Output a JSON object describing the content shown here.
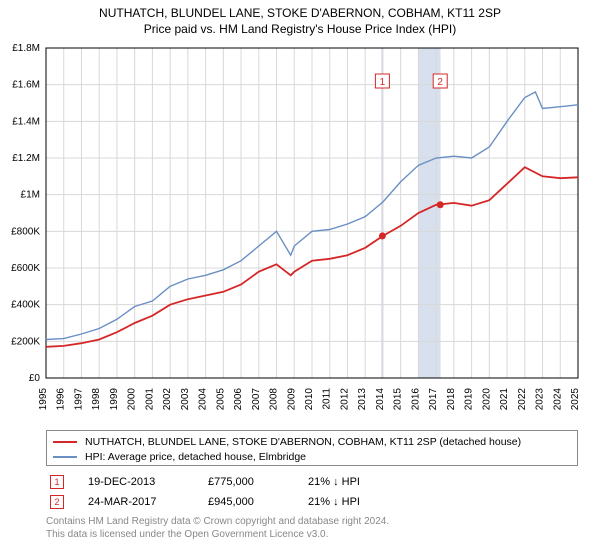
{
  "title_line1": "NUTHATCH, BLUNDEL LANE, STOKE D'ABERNON, COBHAM, KT11 2SP",
  "title_line2": "Price paid vs. HM Land Registry's House Price Index (HPI)",
  "chart": {
    "type": "line",
    "xlim": [
      1995,
      2025
    ],
    "ylim": [
      0,
      1800000
    ],
    "ytick_step": 200000,
    "ytick_labels": [
      "£0",
      "£200K",
      "£400K",
      "£600K",
      "£800K",
      "£1M",
      "£1.2M",
      "£1.4M",
      "£1.6M",
      "£1.8M"
    ],
    "xticks": [
      1995,
      1996,
      1997,
      1998,
      1999,
      2000,
      2001,
      2002,
      2003,
      2004,
      2005,
      2006,
      2007,
      2008,
      2009,
      2010,
      2011,
      2012,
      2013,
      2014,
      2015,
      2016,
      2017,
      2018,
      2019,
      2020,
      2021,
      2022,
      2023,
      2024,
      2025
    ],
    "grid_color": "#d8d8d8",
    "background_color": "#ffffff",
    "axis_color": "#000000",
    "series": {
      "subject": {
        "color": "#d62728",
        "width": 1.8,
        "x": [
          1995,
          1996,
          1997,
          1998,
          1999,
          2000,
          2001,
          2002,
          2003,
          2004,
          2005,
          2006,
          2007,
          2008,
          2008.8,
          2009,
          2010,
          2011,
          2012,
          2013,
          2014,
          2015,
          2016,
          2017,
          2018,
          2019,
          2020,
          2021,
          2022,
          2023,
          2024,
          2025
        ],
        "y": [
          170000,
          175000,
          190000,
          210000,
          250000,
          300000,
          340000,
          400000,
          430000,
          450000,
          470000,
          510000,
          580000,
          620000,
          560000,
          580000,
          640000,
          650000,
          670000,
          710000,
          775000,
          830000,
          900000,
          945000,
          955000,
          940000,
          970000,
          1060000,
          1150000,
          1100000,
          1090000,
          1095000
        ]
      },
      "hpi": {
        "color": "#6a8fc4",
        "width": 1.4,
        "x": [
          1995,
          1996,
          1997,
          1998,
          1999,
          2000,
          2001,
          2002,
          2003,
          2004,
          2005,
          2006,
          2007,
          2008,
          2008.8,
          2009,
          2010,
          2011,
          2012,
          2013,
          2014,
          2015,
          2016,
          2017,
          2018,
          2019,
          2020,
          2021,
          2022,
          2022.6,
          2023,
          2024,
          2025
        ],
        "y": [
          210000,
          215000,
          240000,
          270000,
          320000,
          390000,
          420000,
          500000,
          540000,
          560000,
          590000,
          640000,
          720000,
          800000,
          670000,
          720000,
          800000,
          810000,
          840000,
          880000,
          960000,
          1070000,
          1160000,
          1200000,
          1210000,
          1200000,
          1260000,
          1400000,
          1530000,
          1560000,
          1470000,
          1480000,
          1490000
        ]
      }
    },
    "highlight_bands": [
      {
        "x_from": 2013.9,
        "x_to": 2014.0,
        "color": "#d8e0ee"
      },
      {
        "x_from": 2016.0,
        "x_to": 2017.25,
        "color": "#d8e0ee"
      }
    ],
    "markers": [
      {
        "n": "1",
        "x": 2013.97,
        "y": 775000,
        "label_y": 1620000,
        "box_color": "#d62728"
      },
      {
        "n": "2",
        "x": 2017.23,
        "y": 945000,
        "label_y": 1620000,
        "box_color": "#d62728"
      }
    ]
  },
  "legend": [
    {
      "color": "#d62728",
      "label": "NUTHATCH, BLUNDEL LANE, STOKE D'ABERNON, COBHAM, KT11 2SP (detached house)"
    },
    {
      "color": "#6a8fc4",
      "label": "HPI: Average price, detached house, Elmbridge"
    }
  ],
  "transactions": [
    {
      "n": "1",
      "date": "19-DEC-2013",
      "price": "£775,000",
      "delta": "21% ↓ HPI",
      "color": "#d62728"
    },
    {
      "n": "2",
      "date": "24-MAR-2017",
      "price": "£945,000",
      "delta": "21% ↓ HPI",
      "color": "#d62728"
    }
  ],
  "footer": {
    "line1": "Contains HM Land Registry data © Crown copyright and database right 2024.",
    "line2": "This data is licensed under the Open Government Licence v3.0."
  }
}
